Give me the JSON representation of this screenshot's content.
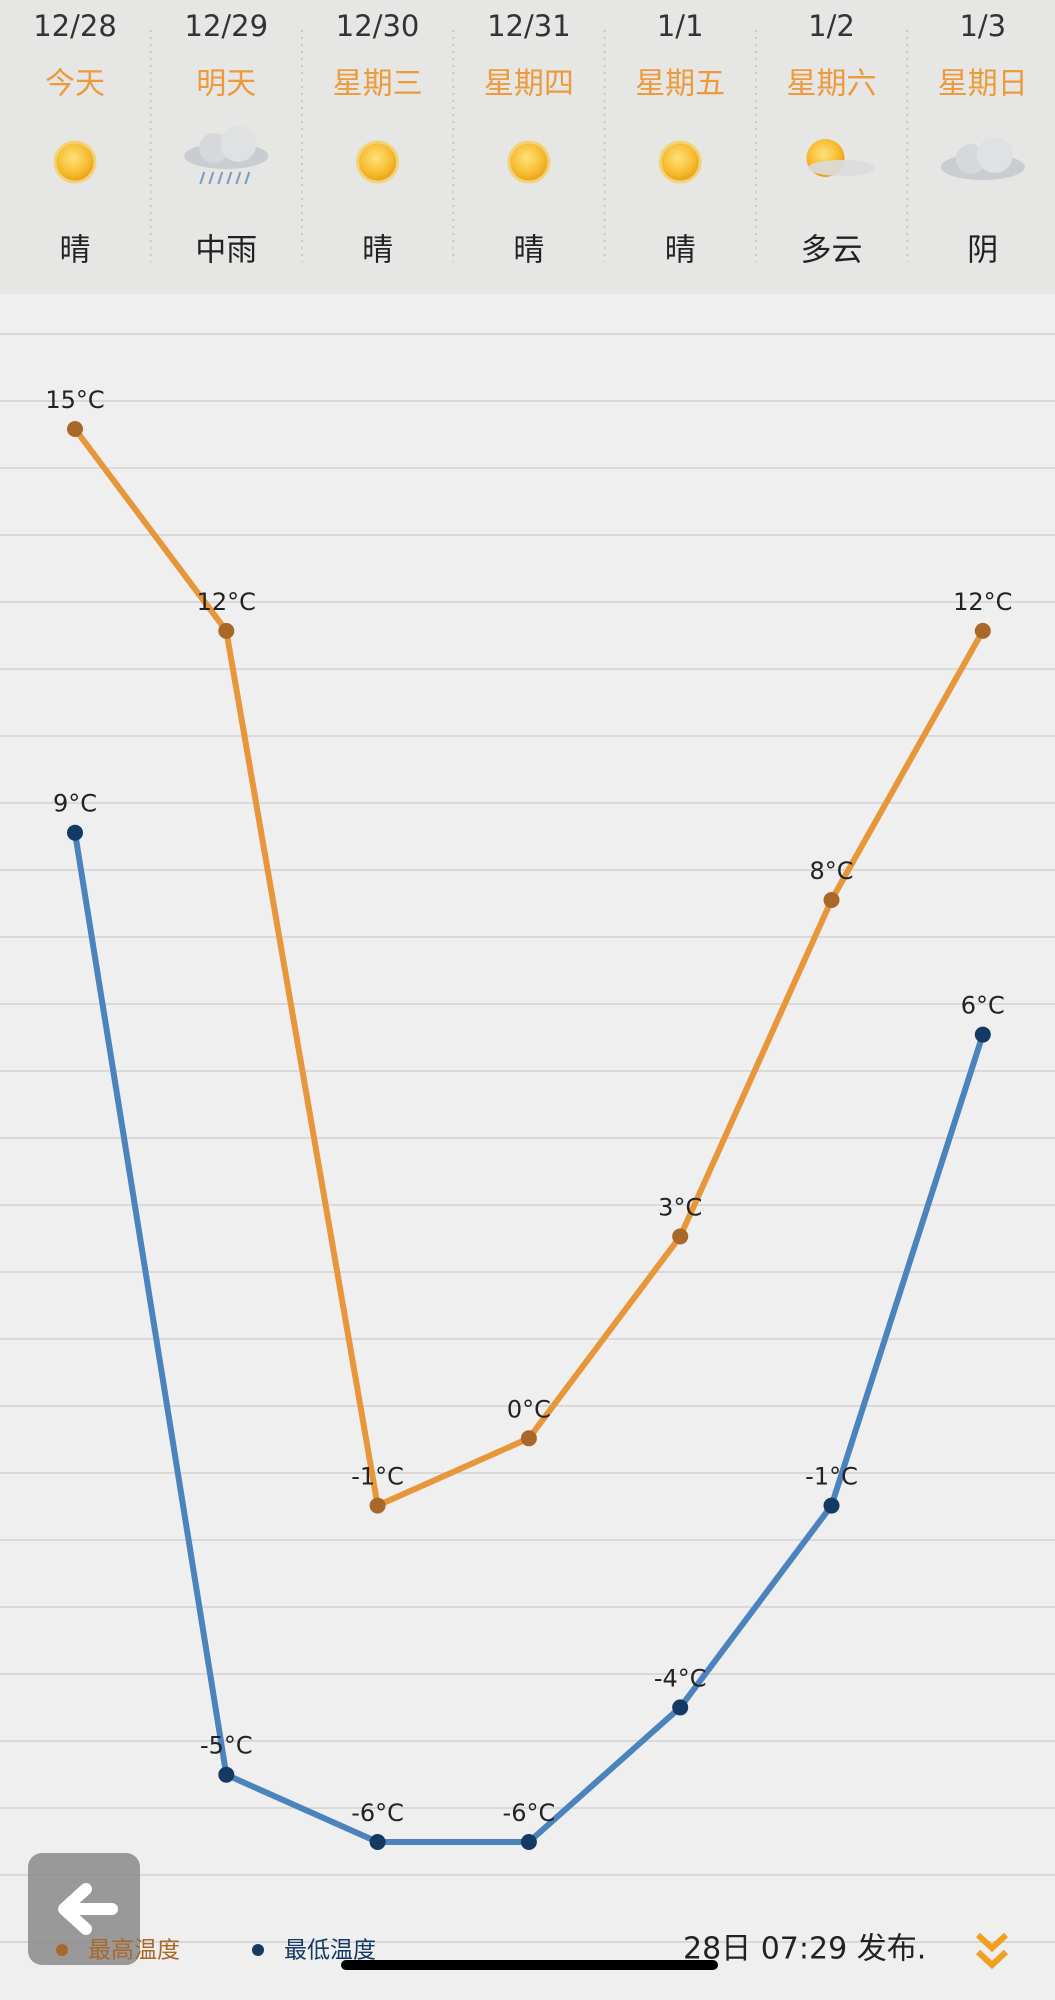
{
  "header": {
    "days": [
      {
        "date": "12/28",
        "day": "今天",
        "weather": "晴"
      },
      {
        "date": "12/29",
        "day": "明天",
        "weather": "中雨"
      },
      {
        "date": "12/30",
        "day": "星期三",
        "weather": "晴"
      },
      {
        "date": "12/31",
        "day": "星期四",
        "weather": "晴"
      },
      {
        "date": "1/1",
        "day": "星期五",
        "weather": "晴"
      },
      {
        "date": "1/2",
        "day": "星期六",
        "weather": "多云"
      },
      {
        "date": "1/3",
        "day": "星期日",
        "weather": "阴"
      }
    ]
  },
  "chart_data": {
    "type": "line",
    "series": [
      {
        "name": "最高温度",
        "color": "#e8963a",
        "point_color": "#a8682a",
        "values": [
          15,
          12,
          -1,
          0,
          3,
          8,
          12
        ],
        "value_labels": [
          "15°C",
          "12°C",
          "-1°C",
          "0°C",
          "3°C",
          "8°C",
          "12°C"
        ]
      },
      {
        "name": "最低温度",
        "color": "#4b83bd",
        "point_color": "#143a63",
        "values": [
          9,
          -5,
          -6,
          -6,
          -4,
          -1,
          6
        ],
        "value_labels": [
          "9°C",
          "-5°C",
          "-6°C",
          "-6°C",
          "-4°C",
          "-1°C",
          "6°C"
        ]
      }
    ]
  },
  "footer": {
    "published": "28日 07:29 发布."
  }
}
